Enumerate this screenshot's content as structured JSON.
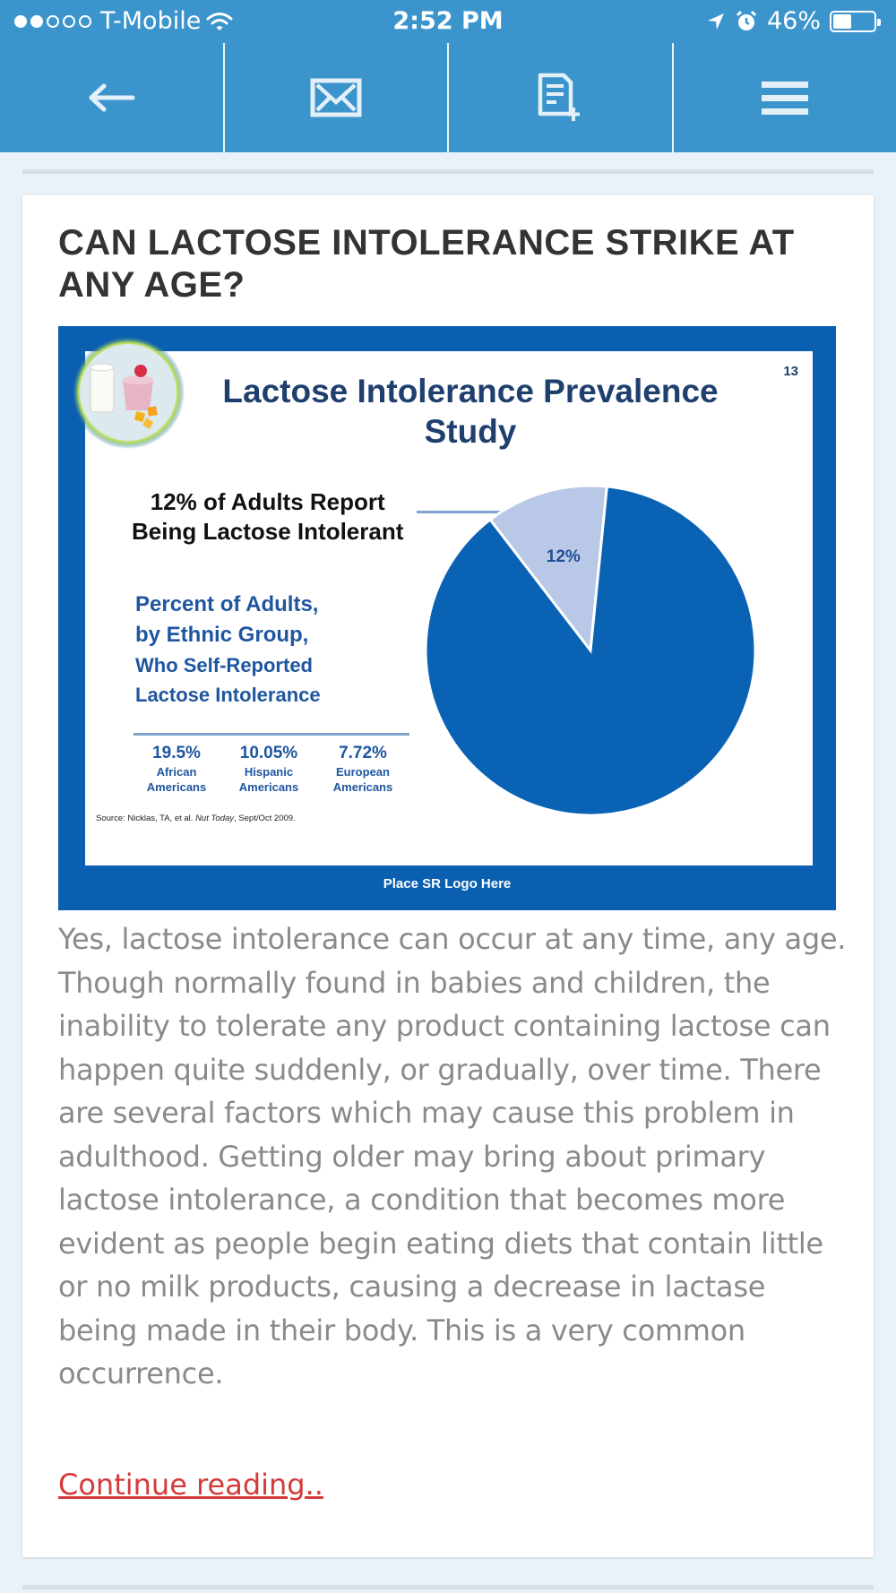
{
  "status_bar": {
    "carrier": "T-Mobile",
    "time": "2:52 PM",
    "battery": "46%",
    "battery_level": 0.46,
    "signal_bars_filled": 2,
    "signal_bars_total": 5
  },
  "toolbar": {
    "items": [
      {
        "name": "back",
        "icon": "arrow-left-icon"
      },
      {
        "name": "email",
        "icon": "envelope-icon"
      },
      {
        "name": "add-note",
        "icon": "note-add-icon"
      },
      {
        "name": "menu",
        "icon": "hamburger-icon"
      }
    ]
  },
  "article": {
    "title": "CAN LACTOSE INTOLERANCE STRIKE AT ANY AGE?",
    "body": "Yes, lactose intolerance can occur at any time, any age. Though normally found in babies and children, the inability to tolerate any product containing lactose can happen quite suddenly, or gradually, over time. There are several factors which may cause this problem in adulthood. Getting older may bring about primary lactose intolerance, a condition that becomes more evident as people begin eating diets that contain little or no milk products, causing a decrease in lactase being made in their body. This is a very common occurrence.",
    "continue_label": "Continue reading.."
  },
  "slide": {
    "number": "13",
    "title": "Lactose Intolerance Prevalence Study",
    "headline_line1": "12% of Adults Report",
    "headline_line2": "Being Lactose Intolerant",
    "subtitle_lines": [
      "Percent of Adults,",
      "by Ethnic Group,",
      "Who Self-Reported",
      "Lactose Intolerance"
    ],
    "groups": [
      {
        "value": "19.5%",
        "label_line1": "African",
        "label_line2": "Americans"
      },
      {
        "value": "10.05%",
        "label_line1": "Hispanic",
        "label_line2": "Americans"
      },
      {
        "value": "7.72%",
        "label_line1": "European",
        "label_line2": "Americans"
      }
    ],
    "source_prefix": "Source: Nicklas, TA, et al.",
    "source_journal": "Nut Today",
    "source_suffix": ", Sept/Oct 2009.",
    "footer": "Place SR Logo Here"
  },
  "chart_data": {
    "type": "pie",
    "slices": [
      {
        "value": 12,
        "label": "12%",
        "color": "#b8c8e6"
      },
      {
        "value": 88,
        "label": "",
        "color": "#0a62b4"
      }
    ]
  },
  "colors": {
    "bar_blue": "#3b95cc",
    "slide_blue": "#0a5fb0",
    "link_red": "#d33a3a",
    "body_gray": "#8a8a8a"
  }
}
